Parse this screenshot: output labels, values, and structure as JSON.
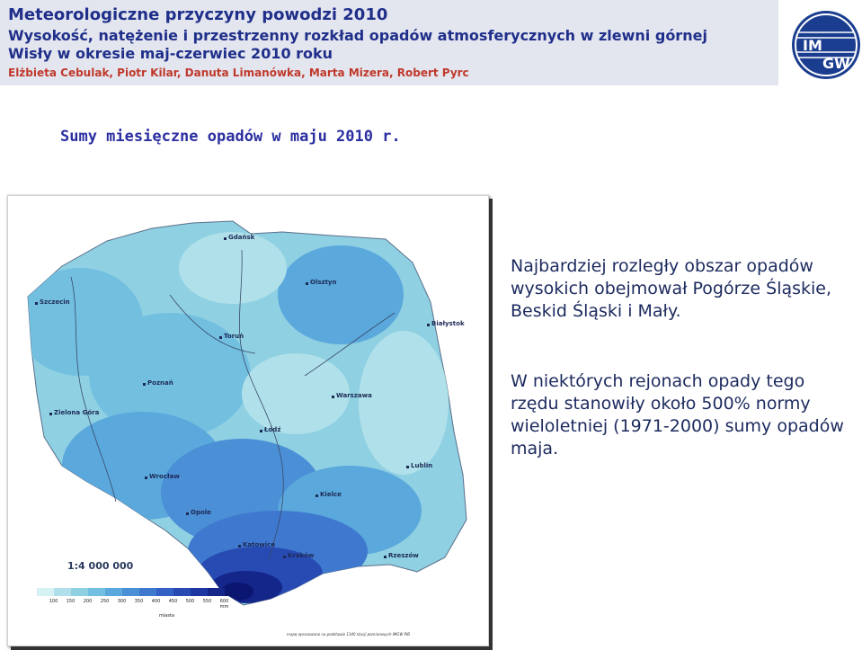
{
  "header": {
    "title": "Meteorologiczne przyczyny powodzi 2010",
    "subtitle_line1": "Wysokość, natężenie i przestrzenny rozkład opadów atmosferycznych w zlewni górnej",
    "subtitle_line2": "Wisły w okresie maj-czerwiec 2010 roku",
    "authors": "Elżbieta Cebulak, Piotr Kilar, Danuta Limanówka, Marta Mizera, Robert Pyrc"
  },
  "logo": {
    "text_top": "IM",
    "text_bottom": "GW"
  },
  "map": {
    "title": "Sumy miesięczne opadów w maju 2010 r.",
    "scale": "1:4 000 000",
    "legend_values": [
      "100",
      "150",
      "200",
      "250",
      "300",
      "350",
      "400",
      "450",
      "500",
      "550",
      "600 mm"
    ],
    "legend_unit": "miasta",
    "legend_colors": [
      "#d6f1f2",
      "#b0e1ea",
      "#8fd0e3",
      "#72bfe0",
      "#5aa8dc",
      "#4b8fd6",
      "#3f78cf",
      "#3361c4",
      "#274bb3",
      "#1e37a0",
      "#14268a",
      "#0b1670"
    ],
    "source_note": "mapę opracowano na podstawie 1140 stacji pomiarowych IMGW PIB",
    "cities": [
      {
        "name": "Gdańsk"
      },
      {
        "name": "Olsztyn"
      },
      {
        "name": "Szczecin"
      },
      {
        "name": "Białystok"
      },
      {
        "name": "Toruń"
      },
      {
        "name": "Poznań"
      },
      {
        "name": "Warszawa"
      },
      {
        "name": "Zielona Góra"
      },
      {
        "name": "Łódź"
      },
      {
        "name": "Lublin"
      },
      {
        "name": "Wrocław"
      },
      {
        "name": "Kielce"
      },
      {
        "name": "Opole"
      },
      {
        "name": "Katowice"
      },
      {
        "name": "Kraków"
      },
      {
        "name": "Rzeszów"
      }
    ]
  },
  "text": {
    "paragraph1": "Najbardziej rozległy obszar opadów wysokich obejmował Pogórze Śląskie, Beskid Śląski i Mały.",
    "paragraph2": "W niektórych rejonach opady tego rzędu stanowiły około 500% normy wieloletniej (1971-2000) sumy opadów maja."
  }
}
